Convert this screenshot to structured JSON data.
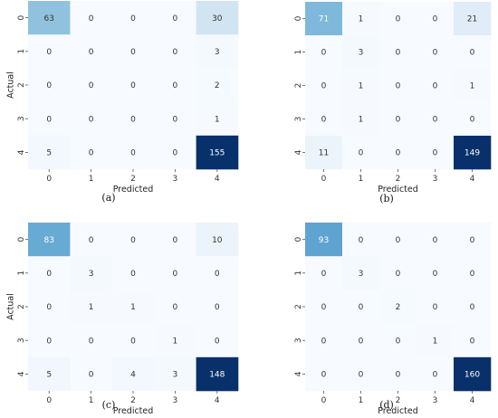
{
  "chart_data": [
    {
      "type": "heatmap",
      "caption": "(a)",
      "xlabel": "Predicted",
      "ylabel": "Actual",
      "x_categories": [
        "0",
        "1",
        "2",
        "3",
        "4"
      ],
      "y_categories": [
        "0",
        "1",
        "2",
        "3",
        "4"
      ],
      "values": [
        [
          63,
          0,
          0,
          0,
          30
        ],
        [
          0,
          0,
          0,
          0,
          3
        ],
        [
          0,
          0,
          0,
          0,
          2
        ],
        [
          0,
          0,
          0,
          0,
          1
        ],
        [
          5,
          0,
          0,
          0,
          155
        ]
      ],
      "color_low": "#f7fbff",
      "color_high": "#08306b"
    },
    {
      "type": "heatmap",
      "caption": "(b)",
      "xlabel": "Predicted",
      "ylabel": "",
      "x_categories": [
        "0",
        "1",
        "2",
        "3",
        "4"
      ],
      "y_categories": [
        "0",
        "1",
        "2",
        "3",
        "4"
      ],
      "values": [
        [
          71,
          1,
          0,
          0,
          21
        ],
        [
          0,
          3,
          0,
          0,
          0
        ],
        [
          0,
          1,
          0,
          0,
          1
        ],
        [
          0,
          1,
          0,
          0,
          0
        ],
        [
          11,
          0,
          0,
          0,
          149
        ]
      ],
      "color_low": "#f7fbff",
      "color_high": "#08306b"
    },
    {
      "type": "heatmap",
      "caption": "(c)",
      "xlabel": "Predicted",
      "ylabel": "Actual",
      "x_categories": [
        "0",
        "1",
        "2",
        "3",
        "4"
      ],
      "y_categories": [
        "0",
        "1",
        "2",
        "3",
        "4"
      ],
      "values": [
        [
          83,
          0,
          0,
          0,
          10
        ],
        [
          0,
          3,
          0,
          0,
          0
        ],
        [
          0,
          1,
          1,
          0,
          0
        ],
        [
          0,
          0,
          0,
          1,
          0
        ],
        [
          5,
          0,
          4,
          3,
          148
        ]
      ],
      "color_low": "#f7fbff",
      "color_high": "#08306b"
    },
    {
      "type": "heatmap",
      "caption": "(d)",
      "xlabel": "Predicted",
      "ylabel": "",
      "x_categories": [
        "0",
        "1",
        "2",
        "3",
        "4"
      ],
      "y_categories": [
        "0",
        "1",
        "2",
        "3",
        "4"
      ],
      "values": [
        [
          93,
          0,
          0,
          0,
          0
        ],
        [
          0,
          3,
          0,
          0,
          0
        ],
        [
          0,
          0,
          2,
          0,
          0
        ],
        [
          0,
          0,
          0,
          1,
          0
        ],
        [
          0,
          0,
          0,
          0,
          160
        ]
      ],
      "color_low": "#f7fbff",
      "color_high": "#08306b"
    }
  ]
}
